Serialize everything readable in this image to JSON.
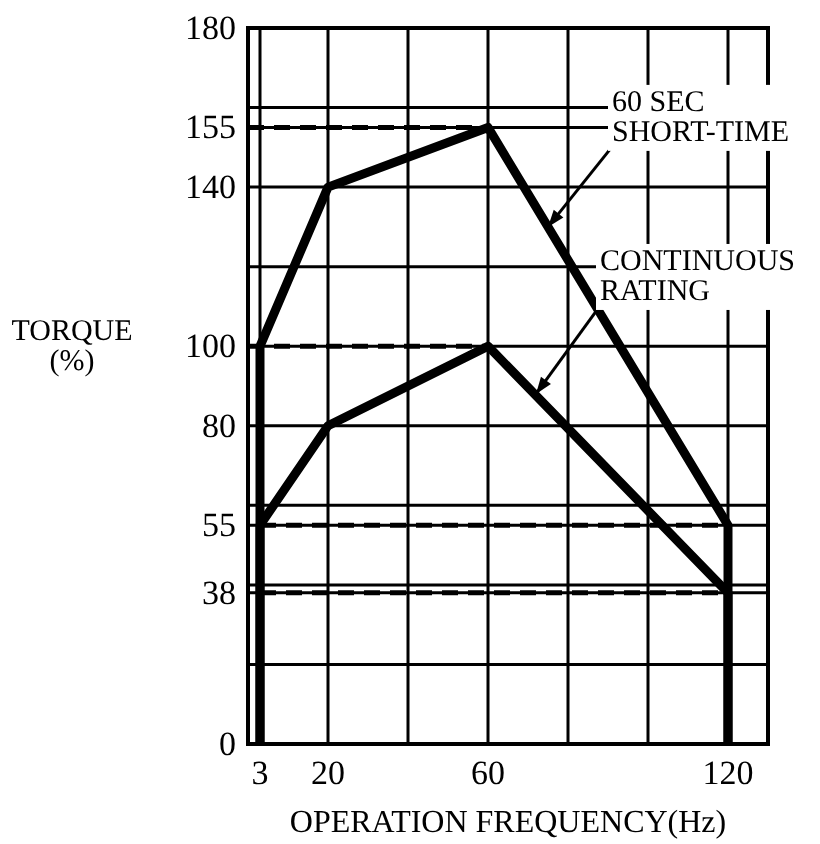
{
  "chart_data": {
    "type": "line",
    "xlabel": "OPERATION FREQUENCY(Hz)",
    "ylabel": "TORQUE\n(%)",
    "xlim": [
      0,
      130
    ],
    "ylim": [
      0,
      180
    ],
    "xticks": [
      3,
      20,
      {
        "value": 40,
        "label": null
      },
      60,
      {
        "value": 80,
        "label": null
      },
      {
        "value": 100,
        "label": null
      },
      120
    ],
    "yticks": [
      0,
      {
        "value": 20,
        "label": null
      },
      38,
      {
        "value": 40,
        "label": null
      },
      55,
      {
        "value": 60,
        "label": null
      },
      80,
      100,
      {
        "value": 120,
        "label": null
      },
      140,
      155,
      {
        "value": 160,
        "label": null
      },
      180
    ],
    "grid": true,
    "series": [
      {
        "color": "#000000",
        "x": [
          3,
          3,
          20,
          60,
          120,
          120
        ],
        "values": [
          0,
          100,
          140,
          155,
          55,
          0
        ],
        "line_style": "solid"
      },
      {
        "color": "#000000",
        "x": [
          3,
          3,
          20,
          60,
          120,
          120
        ],
        "values": [
          0,
          55,
          80,
          100,
          38,
          0
        ],
        "line_style": "solid"
      },
      {
        "color": "#000000",
        "x": [
          0,
          60
        ],
        "values": [
          155,
          155
        ],
        "line_style": "dashed"
      },
      {
        "color": "#000000",
        "x": [
          0,
          60
        ],
        "values": [
          100,
          100
        ],
        "line_style": "dashed"
      },
      {
        "color": "#000000",
        "x": [
          3,
          120
        ],
        "values": [
          55,
          55
        ],
        "line_style": "dashed"
      },
      {
        "color": "#000000",
        "x": [
          3,
          120
        ],
        "values": [
          38,
          38
        ],
        "line_style": "dashed"
      }
    ],
    "annotations": [
      {
        "text": "60 SEC\nSHORT-TIME",
        "x": 75,
        "y": 130
      },
      {
        "text": "CONTINUOUS\nRATING",
        "x": 72,
        "y": 88
      }
    ]
  }
}
